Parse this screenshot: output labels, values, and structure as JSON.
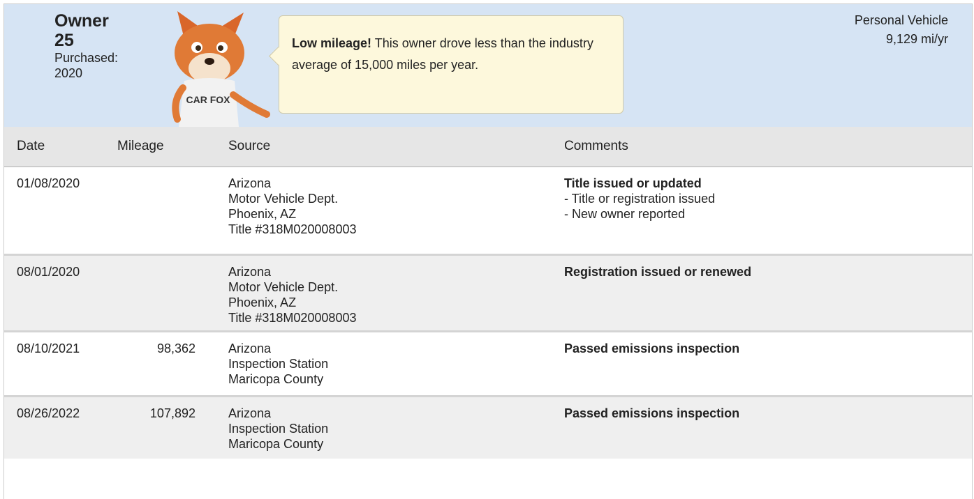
{
  "header": {
    "owner": "Owner 25",
    "purchased": "Purchased: 2020",
    "fox_shirt": "CAR FOX",
    "callout": {
      "bold": "Low mileage!",
      "text": "This owner drove less than the industry average of 15,000 miles per year."
    },
    "vehicle_type": "Personal Vehicle",
    "mileage_rate": "9,129 mi/yr"
  },
  "table": {
    "columns": [
      "Date",
      "Mileage",
      "Source",
      "Comments"
    ],
    "rows": [
      {
        "date": "01/08/2020",
        "mileage": null,
        "source": [
          "Arizona",
          "Motor Vehicle Dept.",
          "Phoenix, AZ",
          "Title #318M020008003"
        ],
        "comment": "Title issued or updated",
        "details": [
          "- Title or registration issued",
          "- New owner reported"
        ]
      },
      {
        "date": "08/01/2020",
        "mileage": null,
        "source": [
          "Arizona",
          "Motor Vehicle Dept.",
          "Phoenix, AZ",
          "Title #318M020008003"
        ],
        "comment": "Registration issued or renewed",
        "details": []
      },
      {
        "date": "08/10/2021",
        "mileage": "98,362",
        "source": [
          "Arizona",
          "Inspection Station",
          "Maricopa County"
        ],
        "comment": "Passed emissions inspection",
        "details": []
      },
      {
        "date": "08/26/2022",
        "mileage": "107,892",
        "source": [
          "Arizona",
          "Inspection Station",
          "Maricopa County"
        ],
        "comment": "Passed emissions inspection",
        "details": []
      }
    ]
  }
}
